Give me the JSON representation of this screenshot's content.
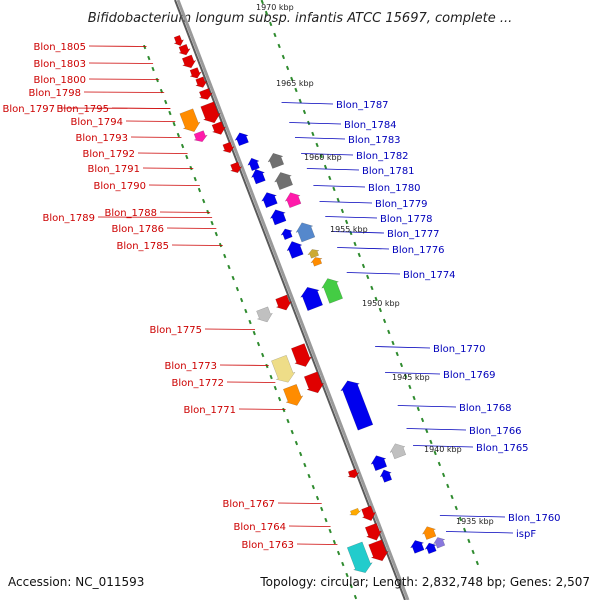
{
  "title": "Bifidobacterium longum subsp. infantis ATCC 15697, complete ...",
  "footer": {
    "accession": "Accession: NC_011593",
    "summary": "Topology: circular; Length: 2,832,748 bp; Genes: 2,507"
  },
  "colors": {
    "forward": "#e00000",
    "reverse": "#0000ee",
    "backbone": "#9a9a9a",
    "tick": "#2e8b2e",
    "left_label": "#cc0000",
    "right_label": "#0000bb"
  },
  "scale_labels": [
    "1970 kbp",
    "1965 kbp",
    "1960 kbp",
    "1955 kbp",
    "1950 kbp",
    "1945 kbp",
    "1940 kbp",
    "1935 kbp"
  ],
  "left_genes": [
    "Blon_1805",
    "Blon_1803",
    "Blon_1800",
    "Blon_1798",
    "Blon_1797",
    "Blon_1795",
    "Blon_1794",
    "Blon_1793",
    "Blon_1792",
    "Blon_1791",
    "Blon_1790",
    "Blon_1789",
    "Blon_1788",
    "Blon_1786",
    "Blon_1785",
    "Blon_1775",
    "Blon_1773",
    "Blon_1772",
    "Blon_1771",
    "Blon_1767",
    "Blon_1764",
    "Blon_1763"
  ],
  "right_genes": [
    "Blon_1787",
    "Blon_1784",
    "Blon_1783",
    "Blon_1782",
    "Blon_1781",
    "Blon_1780",
    "Blon_1779",
    "Blon_1778",
    "Blon_1777",
    "Blon_1776",
    "Blon_1774",
    "Blon_1770",
    "Blon_1769",
    "Blon_1768",
    "Blon_1766",
    "Blon_1765",
    "Blon_1760",
    "ispF"
  ]
}
